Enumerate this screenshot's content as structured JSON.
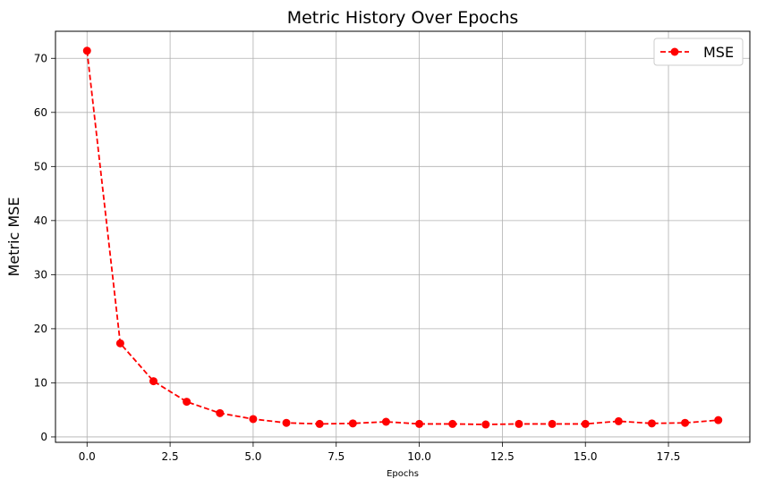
{
  "chart_data": {
    "type": "line",
    "title": "Metric History Over Epochs",
    "xlabel": "Epochs",
    "ylabel": "Metric MSE",
    "xlim": [
      -0.95,
      19.95
    ],
    "ylim": [
      -1.0,
      75.0
    ],
    "x_ticks": [
      0.0,
      2.5,
      5.0,
      7.5,
      10.0,
      12.5,
      15.0,
      17.5
    ],
    "x_tick_labels": [
      "0.0",
      "2.5",
      "5.0",
      "7.5",
      "10.0",
      "12.5",
      "15.0",
      "17.5"
    ],
    "y_ticks": [
      0,
      10,
      20,
      30,
      40,
      50,
      60,
      70
    ],
    "y_tick_labels": [
      "0",
      "10",
      "20",
      "30",
      "40",
      "50",
      "60",
      "70"
    ],
    "grid": true,
    "legend_position": "top-right",
    "series": [
      {
        "name": "MSE",
        "color": "#ff0000",
        "line_style": "dashed",
        "marker": "circle",
        "x": [
          0,
          1,
          2,
          3,
          4,
          5,
          6,
          7,
          8,
          9,
          10,
          11,
          12,
          13,
          14,
          15,
          16,
          17,
          18,
          19
        ],
        "y": [
          71.4,
          17.3,
          10.3,
          6.5,
          4.4,
          3.3,
          2.6,
          2.4,
          2.5,
          2.8,
          2.4,
          2.4,
          2.3,
          2.4,
          2.4,
          2.4,
          2.9,
          2.5,
          2.6,
          3.1
        ]
      }
    ]
  }
}
